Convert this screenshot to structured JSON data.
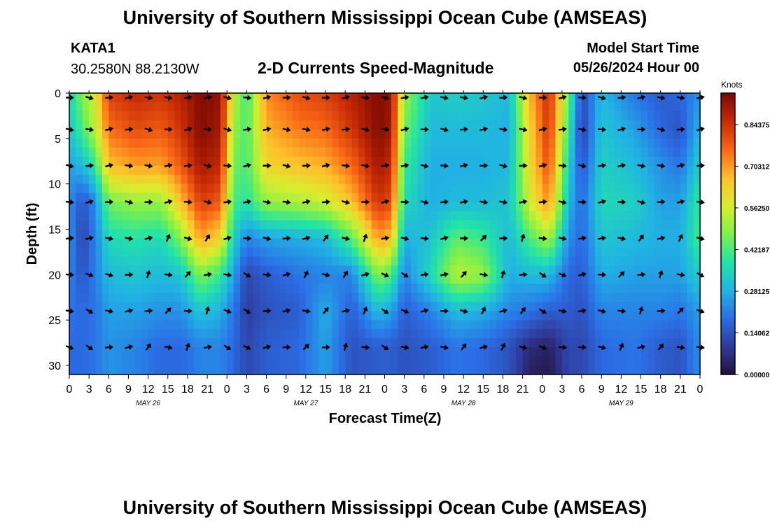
{
  "page_title": "University of Southern Mississippi Ocean Cube (AMSEAS)",
  "station": {
    "id": "KATA1",
    "coordinates": "30.2580N  88.2130W"
  },
  "plot_subtitle": "2-D Currents Speed-Magnitude",
  "model_start": {
    "label": "Model Start Time",
    "value": "05/26/2024 Hour 00"
  },
  "footer_title": "University of Southern Mississippi Ocean Cube (AMSEAS)",
  "colors": {
    "ramp": [
      "#24103a",
      "#2f3a9a",
      "#2b6ee6",
      "#21b3e3",
      "#22e3a8",
      "#7ff049",
      "#d9ee2f",
      "#ffbf2b",
      "#f86616",
      "#c72a05",
      "#7a0902"
    ],
    "arrow": "#000000"
  },
  "chart_data": {
    "type": "heatmap",
    "title": "2-D Currents Speed-Magnitude",
    "xlabel": "Forecast Time(Z)",
    "ylabel": "Depth (ft)",
    "x_ticks": [
      "0",
      "3",
      "6",
      "9",
      "12",
      "15",
      "18",
      "21",
      "0",
      "3",
      "6",
      "9",
      "12",
      "15",
      "18",
      "21",
      "0",
      "3",
      "6",
      "9",
      "12",
      "15",
      "18",
      "21",
      "0",
      "3",
      "6",
      "9",
      "12",
      "15",
      "18",
      "21",
      "0"
    ],
    "day_labels": [
      "MAY 26",
      "MAY 27",
      "MAY 28",
      "MAY 29"
    ],
    "xlim_hours": [
      0,
      96
    ],
    "ylim_ft": [
      0,
      31
    ],
    "y_ticks": [
      0,
      5,
      10,
      15,
      20,
      25,
      30
    ],
    "colorbar": {
      "label": "Knots",
      "range": [
        0,
        0.95
      ],
      "tick_values": [
        0.0,
        0.140625,
        0.28125,
        0.421875,
        0.5625,
        0.703125,
        0.84375
      ],
      "tick_labels": [
        "0.00000",
        "0.14062",
        "0.28125",
        "0.42187",
        "0.56250",
        "0.70312",
        "0.84375"
      ]
    },
    "arrow_depths_ft": [
      0.5,
      4,
      8,
      12,
      16,
      20,
      24,
      28
    ],
    "arrow_times_hours": [
      0,
      3,
      6,
      9,
      12,
      15,
      18,
      21,
      24,
      27,
      30,
      33,
      36,
      39,
      42,
      45,
      48,
      51,
      54,
      57,
      60,
      63,
      66,
      69,
      72,
      75,
      78,
      81,
      84,
      87,
      90,
      93,
      96
    ],
    "speed_field_knots": {
      "description": "Speed magnitude as a function of forecast hour (rows) at depths 0,4,8,12,16,20,24,28,31 ft (columns)",
      "depths_ft": [
        0,
        4,
        8,
        12,
        16,
        20,
        24,
        28,
        31
      ],
      "profiles": [
        {
          "hour": 0,
          "speed": [
            0.35,
            0.32,
            0.26,
            0.24,
            0.24,
            0.22,
            0.2,
            0.18,
            0.18
          ]
        },
        {
          "hour": 2,
          "speed": [
            0.48,
            0.42,
            0.3,
            0.14,
            0.11,
            0.14,
            0.18,
            0.18,
            0.18
          ]
        },
        {
          "hour": 4,
          "speed": [
            0.58,
            0.55,
            0.4,
            0.24,
            0.22,
            0.22,
            0.2,
            0.2,
            0.2
          ]
        },
        {
          "hour": 6,
          "speed": [
            0.82,
            0.75,
            0.66,
            0.46,
            0.36,
            0.3,
            0.26,
            0.24,
            0.24
          ]
        },
        {
          "hour": 10,
          "speed": [
            0.86,
            0.8,
            0.7,
            0.5,
            0.38,
            0.32,
            0.26,
            0.22,
            0.22
          ]
        },
        {
          "hour": 14,
          "speed": [
            0.84,
            0.78,
            0.7,
            0.5,
            0.36,
            0.3,
            0.24,
            0.18,
            0.18
          ]
        },
        {
          "hour": 17,
          "speed": [
            0.88,
            0.84,
            0.78,
            0.66,
            0.48,
            0.32,
            0.24,
            0.18,
            0.18
          ]
        },
        {
          "hour": 20,
          "speed": [
            0.94,
            0.94,
            0.9,
            0.82,
            0.7,
            0.48,
            0.32,
            0.22,
            0.22
          ]
        },
        {
          "hour": 23,
          "speed": [
            0.92,
            0.9,
            0.86,
            0.78,
            0.62,
            0.4,
            0.28,
            0.22,
            0.22
          ]
        },
        {
          "hour": 25,
          "speed": [
            0.55,
            0.5,
            0.46,
            0.42,
            0.34,
            0.26,
            0.2,
            0.18,
            0.18
          ]
        },
        {
          "hour": 27,
          "speed": [
            0.4,
            0.42,
            0.42,
            0.38,
            0.22,
            0.12,
            0.1,
            0.12,
            0.12
          ]
        },
        {
          "hour": 30,
          "speed": [
            0.72,
            0.68,
            0.62,
            0.5,
            0.26,
            0.16,
            0.14,
            0.16,
            0.16
          ]
        },
        {
          "hour": 35,
          "speed": [
            0.8,
            0.74,
            0.66,
            0.52,
            0.28,
            0.2,
            0.16,
            0.18,
            0.18
          ]
        },
        {
          "hour": 39,
          "speed": [
            0.82,
            0.76,
            0.68,
            0.56,
            0.3,
            0.22,
            0.28,
            0.26,
            0.26
          ]
        },
        {
          "hour": 43,
          "speed": [
            0.88,
            0.84,
            0.76,
            0.66,
            0.44,
            0.22,
            0.16,
            0.14,
            0.14
          ]
        },
        {
          "hour": 47,
          "speed": [
            0.94,
            0.94,
            0.9,
            0.84,
            0.7,
            0.48,
            0.3,
            0.16,
            0.16
          ]
        },
        {
          "hour": 49,
          "speed": [
            0.92,
            0.9,
            0.86,
            0.8,
            0.66,
            0.42,
            0.26,
            0.16,
            0.16
          ]
        },
        {
          "hour": 51,
          "speed": [
            0.5,
            0.46,
            0.4,
            0.36,
            0.28,
            0.22,
            0.16,
            0.14,
            0.14
          ]
        },
        {
          "hour": 55,
          "speed": [
            0.32,
            0.3,
            0.28,
            0.28,
            0.32,
            0.36,
            0.22,
            0.16,
            0.16
          ]
        },
        {
          "hour": 59,
          "speed": [
            0.34,
            0.3,
            0.28,
            0.3,
            0.44,
            0.54,
            0.3,
            0.2,
            0.2
          ]
        },
        {
          "hour": 63,
          "speed": [
            0.32,
            0.3,
            0.28,
            0.3,
            0.4,
            0.5,
            0.28,
            0.18,
            0.18
          ]
        },
        {
          "hour": 67,
          "speed": [
            0.3,
            0.28,
            0.3,
            0.32,
            0.3,
            0.28,
            0.22,
            0.14,
            0.14
          ]
        },
        {
          "hour": 70,
          "speed": [
            0.66,
            0.62,
            0.6,
            0.56,
            0.42,
            0.3,
            0.2,
            0.06,
            0.04
          ]
        },
        {
          "hour": 73,
          "speed": [
            0.86,
            0.84,
            0.8,
            0.72,
            0.52,
            0.3,
            0.16,
            0.04,
            0.02
          ]
        },
        {
          "hour": 76,
          "speed": [
            0.46,
            0.4,
            0.34,
            0.3,
            0.24,
            0.18,
            0.16,
            0.12,
            0.12
          ]
        },
        {
          "hour": 78,
          "speed": [
            0.12,
            0.1,
            0.14,
            0.18,
            0.18,
            0.16,
            0.14,
            0.12,
            0.12
          ]
        },
        {
          "hour": 81,
          "speed": [
            0.3,
            0.32,
            0.34,
            0.36,
            0.32,
            0.28,
            0.22,
            0.18,
            0.18
          ]
        },
        {
          "hour": 86,
          "speed": [
            0.2,
            0.26,
            0.3,
            0.34,
            0.3,
            0.26,
            0.22,
            0.2,
            0.2
          ]
        },
        {
          "hour": 90,
          "speed": [
            0.16,
            0.18,
            0.24,
            0.26,
            0.28,
            0.26,
            0.22,
            0.16,
            0.16
          ]
        },
        {
          "hour": 93,
          "speed": [
            0.18,
            0.14,
            0.2,
            0.26,
            0.28,
            0.26,
            0.2,
            0.14,
            0.14
          ]
        },
        {
          "hour": 96,
          "speed": [
            0.24,
            0.3,
            0.34,
            0.4,
            0.42,
            0.34,
            0.26,
            0.24,
            0.24
          ]
        }
      ]
    }
  }
}
